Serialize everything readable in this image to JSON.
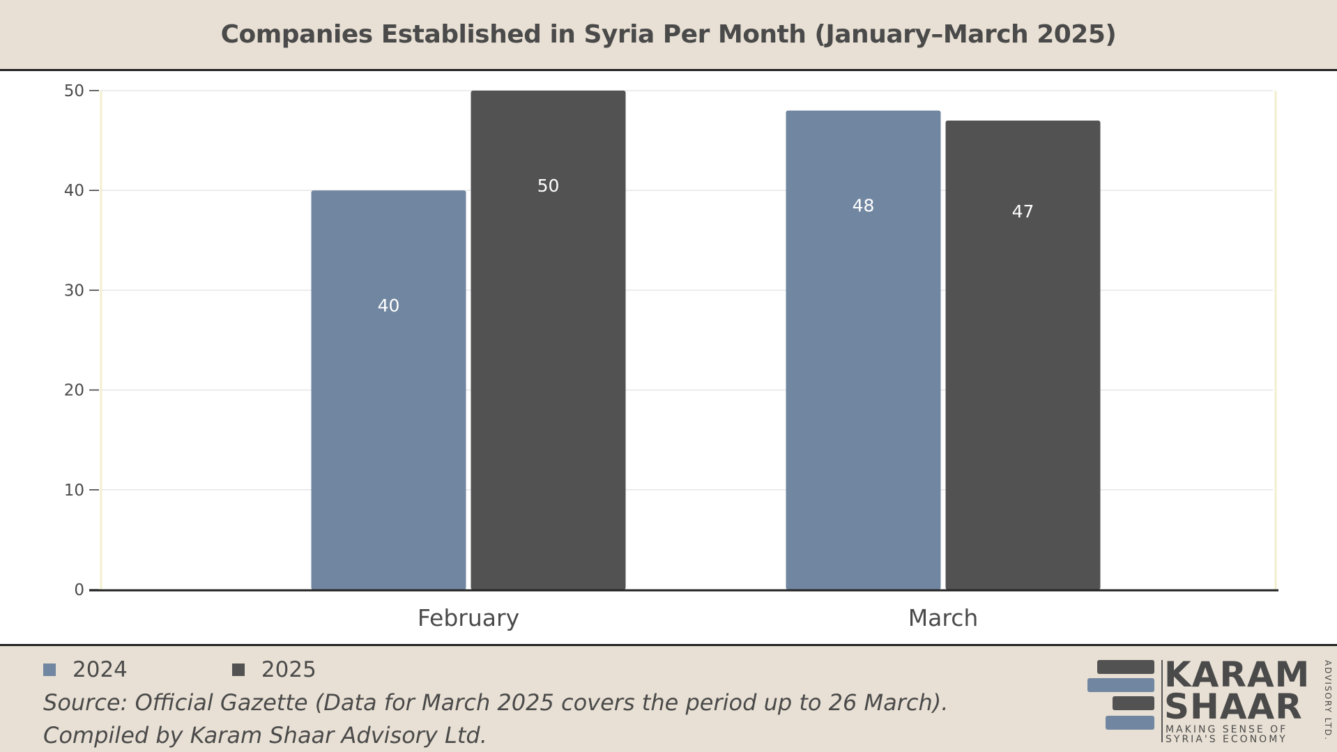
{
  "colors": {
    "background_band": "#e8e0d4",
    "series_2024": "#7186a0",
    "series_2025": "#525252",
    "text": "#4a4a4a"
  },
  "chart_data": {
    "type": "bar",
    "title": "Companies Established in Syria Per Month (January–March 2025)",
    "categories": [
      "February",
      "March"
    ],
    "series": [
      {
        "name": "2024",
        "values": [
          40,
          48
        ],
        "color": "#7186a0"
      },
      {
        "name": "2025",
        "values": [
          50,
          47
        ],
        "color": "#525252"
      }
    ],
    "ylim": [
      0,
      50
    ],
    "yticks": [
      "0",
      "10",
      "20",
      "30",
      "40",
      "50"
    ],
    "data_labels": [
      [
        "40",
        "48"
      ],
      [
        "50",
        "47"
      ]
    ],
    "xlabel": "",
    "ylabel": "",
    "grid": true,
    "legend_position": "bottom-left"
  },
  "legend": {
    "items": [
      {
        "label": "2024",
        "color": "#7186a0"
      },
      {
        "label": "2025",
        "color": "#525252"
      }
    ]
  },
  "footer": {
    "source": "Source: Official Gazette (Data for March 2025 covers the period up to 26 March). Compiled by Karam Shaar Advisory Ltd."
  },
  "logo": {
    "line1": "KARAM",
    "line2": "SHAAR",
    "tagline1": "MAKING SENSE OF",
    "tagline2": "SYRIA'S ECONOMY",
    "vertical": "ADVISORY LTD."
  }
}
